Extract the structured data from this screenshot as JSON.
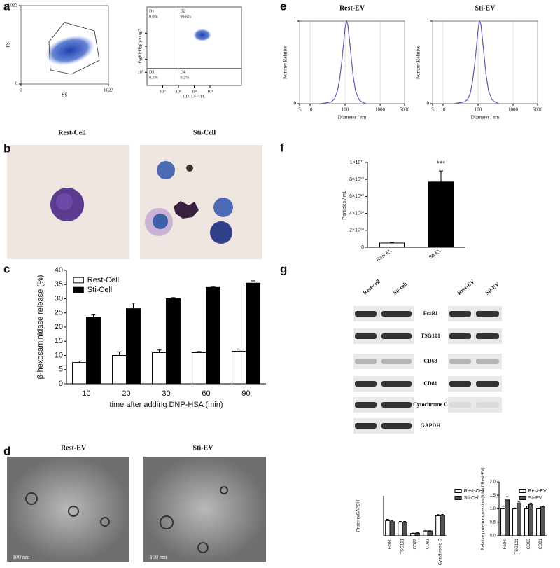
{
  "panels": [
    "a",
    "b",
    "c",
    "d",
    "e",
    "f",
    "g"
  ],
  "images": {
    "b": [
      "Rest-Cell",
      "Sti-Cell"
    ],
    "d": [
      "Rest-EV",
      "Sti-EV"
    ],
    "scale_bars": [
      "100 nm",
      "100 nm"
    ]
  },
  "blot": {
    "columns": [
      "Rest-cell",
      "Sti-cell",
      "Rest-EV",
      "Sti-EV"
    ],
    "rows": [
      "FcεRI",
      "TSG101",
      "CD63",
      "CD81",
      "Cytochrome C",
      "GAPDH"
    ]
  },
  "chart_data": [
    {
      "type": "flow",
      "xlabel": "SS",
      "ylabel": "FS",
      "xlim": [
        0,
        1023
      ],
      "ylim": [
        0,
        1023
      ],
      "xticks": [
        0,
        1023
      ],
      "yticks": [
        0,
        1023
      ]
    },
    {
      "type": "quadrant",
      "xlabel": "CD117-FITC",
      "ylabel": "FcεRI-PE-Cyanine7",
      "xscale": "log",
      "yscale": "log",
      "xlim": [
        0.1,
        100000
      ],
      "ylim": [
        0.1,
        100000
      ],
      "xticks": [
        {
          "value": 1,
          "label": "10⁰"
        },
        {
          "value": 10,
          "label": "10¹"
        },
        {
          "value": 100,
          "label": "10²"
        },
        {
          "value": 1000,
          "label": "10³"
        }
      ],
      "yticks": [
        {
          "value": 1,
          "label": "10⁰"
        },
        {
          "value": 10,
          "label": "10¹"
        },
        {
          "value": 100,
          "label": "10²"
        },
        {
          "value": 1000,
          "label": "10³"
        }
      ],
      "categories": [
        "D1",
        "D2",
        "D3",
        "D4"
      ],
      "values": [
        0.0,
        99.6,
        0.1,
        0.3
      ],
      "value_labels": [
        "0.0%",
        "99.6%",
        "0.1%",
        "0.3%"
      ]
    },
    {
      "type": "line",
      "title": "Rest-EV",
      "xlabel": "Diameter / nm",
      "ylabel": "Number Relative",
      "xscale": "log",
      "xlim": [
        5,
        5000
      ],
      "ylim": [
        0,
        1
      ],
      "xticks": [
        5,
        10,
        100,
        1000,
        5000
      ],
      "yticks": [
        0,
        1
      ],
      "grid": true,
      "color": "#5b5fae",
      "x": [
        20,
        40,
        50,
        60,
        70,
        80,
        90,
        100,
        110,
        120,
        130,
        150,
        170,
        200,
        250,
        300,
        400
      ],
      "values": [
        0,
        0.02,
        0.06,
        0.15,
        0.3,
        0.5,
        0.72,
        0.92,
        1,
        0.95,
        0.82,
        0.55,
        0.33,
        0.15,
        0.05,
        0.02,
        0
      ]
    },
    {
      "type": "line",
      "title": "Sti-EV",
      "xlabel": "Diameter / nm",
      "ylabel": "Number Relative",
      "xscale": "log",
      "xlim": [
        5,
        5000
      ],
      "ylim": [
        0,
        1
      ],
      "xticks": [
        5,
        10,
        100,
        1000,
        5000
      ],
      "yticks": [
        0,
        1
      ],
      "grid": true,
      "color": "#5b5fae",
      "x": [
        20,
        40,
        50,
        60,
        70,
        80,
        90,
        100,
        110,
        120,
        130,
        150,
        170,
        200,
        250,
        300,
        400
      ],
      "values": [
        0,
        0.02,
        0.05,
        0.13,
        0.28,
        0.48,
        0.7,
        0.9,
        1,
        0.96,
        0.83,
        0.56,
        0.34,
        0.15,
        0.05,
        0.02,
        0
      ]
    },
    {
      "type": "bar",
      "ylabel": "Particles / mL",
      "categories": [
        "Rest-EV",
        "Sti-EV"
      ],
      "values": [
        5000000000,
        77000000000
      ],
      "errors": [
        800000000,
        13000000000
      ],
      "colors": [
        "#ffffff",
        "#000000"
      ],
      "ylim": [
        0,
        100000000000
      ],
      "yticks": [
        0,
        {
          "value": 20000000000,
          "label": "2×10¹⁰"
        },
        {
          "value": 40000000000,
          "label": "4×10¹⁰"
        },
        {
          "value": 60000000000,
          "label": "6×10¹⁰"
        },
        {
          "value": 80000000000,
          "label": "8×10¹⁰"
        },
        {
          "value": 100000000000,
          "label": "1×10¹¹"
        }
      ],
      "annotations": [
        "***"
      ]
    },
    {
      "type": "bar",
      "ylabel": "β-hexosaminidase release (%)",
      "xlabel": "time after adding DNP-HSA (min)",
      "categories": [
        "10",
        "20",
        "30",
        "60",
        "90"
      ],
      "legend": "top-left",
      "series": [
        {
          "name": "Rest-Cell",
          "color": "#ffffff",
          "values": [
            7.5,
            10,
            11,
            11,
            11.5
          ],
          "errors": [
            0.5,
            1.3,
            0.9,
            0.4,
            0.7
          ]
        },
        {
          "name": "Sti-Cell",
          "color": "#000000",
          "values": [
            23.5,
            26.5,
            30,
            34,
            35.5
          ],
          "errors": [
            0.8,
            2,
            0.4,
            0.3,
            0.8
          ]
        }
      ],
      "ylim": [
        0,
        40
      ],
      "yticks": [
        0,
        5,
        10,
        15,
        20,
        25,
        30,
        35,
        40
      ]
    },
    {
      "type": "bar",
      "ylabel": "Proteins/GAPDH",
      "categories": [
        "FcεRI",
        "TSG101",
        "CD63",
        "CD81",
        "Cytochrome C"
      ],
      "legend": "top-right",
      "series": [
        {
          "name": "Rest-Cell",
          "color": "#ffffff",
          "values": [
            0.95,
            0.85,
            0.15,
            0.3,
            1.25
          ],
          "errors": [
            0.08,
            0.05,
            0.02,
            0.02,
            0.07
          ]
        },
        {
          "name": "Sti-Cell",
          "color": "#555555",
          "values": [
            0.88,
            0.85,
            0.17,
            0.3,
            1.28
          ],
          "errors": [
            0.08,
            0.05,
            0.02,
            0.02,
            0.05
          ]
        }
      ],
      "ylim": [
        0,
        2.5
      ]
    },
    {
      "type": "bar",
      "ylabel": "Relative protein expression (fold of Rest-EV)",
      "categories": [
        "FcεRI",
        "TSG101",
        "CD63",
        "CD81"
      ],
      "legend": "top-right",
      "series": [
        {
          "name": "Rest-EV",
          "color": "#ffffff",
          "values": [
            1,
            1,
            1,
            1
          ],
          "errors": [
            0.1,
            0.03,
            0.1,
            0.03
          ]
        },
        {
          "name": "Sti-EV",
          "color": "#555555",
          "values": [
            1.33,
            1.2,
            1.17,
            1.07
          ],
          "errors": [
            0.12,
            0.05,
            0.04,
            0.03
          ]
        }
      ],
      "ylim": [
        0,
        2
      ],
      "yticks": [
        {
          "value": 0,
          "label": "0.0"
        },
        {
          "value": 0.5,
          "label": "0.5"
        },
        {
          "value": 1,
          "label": "1.0"
        },
        {
          "value": 1.5,
          "label": "1.5"
        },
        {
          "value": 2,
          "label": "2.0"
        }
      ]
    }
  ]
}
